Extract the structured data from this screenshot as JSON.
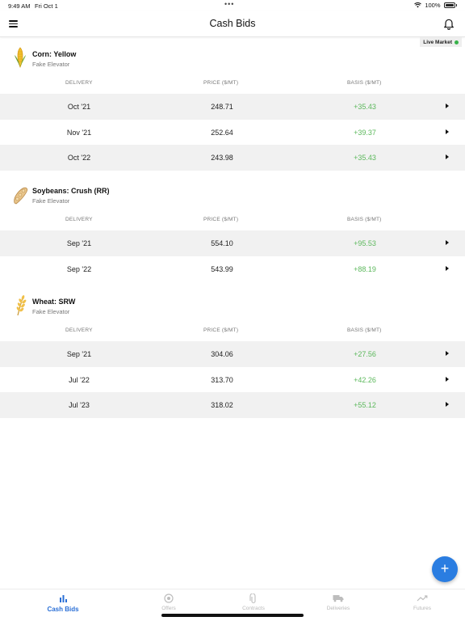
{
  "status_bar": {
    "time": "9:49 AM",
    "date": "Fri Oct 1",
    "battery": "100%"
  },
  "nav": {
    "title": "Cash Bids"
  },
  "live_market": {
    "label": "Live Market",
    "color": "#38b24a"
  },
  "columns": {
    "delivery": "DELIVERY",
    "price": "PRICE ($/MT)",
    "basis": "BASIS ($/MT)"
  },
  "sections": [
    {
      "name": "Corn: Yellow",
      "location": "Fake Elevator",
      "icon": "corn-icon",
      "rows": [
        {
          "delivery": "Oct '21",
          "price": "248.71",
          "basis": "+35.43"
        },
        {
          "delivery": "Nov '21",
          "price": "252.64",
          "basis": "+39.37"
        },
        {
          "delivery": "Oct '22",
          "price": "243.98",
          "basis": "+35.43"
        }
      ]
    },
    {
      "name": "Soybeans: Crush (RR)",
      "location": "Fake Elevator",
      "icon": "soybean-icon",
      "rows": [
        {
          "delivery": "Sep '21",
          "price": "554.10",
          "basis": "+95.53"
        },
        {
          "delivery": "Sep '22",
          "price": "543.99",
          "basis": "+88.19"
        }
      ]
    },
    {
      "name": "Wheat: SRW",
      "location": "Fake Elevator",
      "icon": "wheat-icon",
      "rows": [
        {
          "delivery": "Sep '21",
          "price": "304.06",
          "basis": "+27.56"
        },
        {
          "delivery": "Jul '22",
          "price": "313.70",
          "basis": "+42.26"
        },
        {
          "delivery": "Jul '23",
          "price": "318.02",
          "basis": "+55.12"
        }
      ]
    }
  ],
  "fab": {
    "label": "+",
    "color": "#2a7de1"
  },
  "tabs": [
    {
      "label": "Cash Bids",
      "icon": "bar-chart-icon",
      "active": true
    },
    {
      "label": "Offers",
      "icon": "target-icon",
      "active": false
    },
    {
      "label": "Contracts",
      "icon": "paperclip-icon",
      "active": false
    },
    {
      "label": "Deliveries",
      "icon": "truck-icon",
      "active": false
    },
    {
      "label": "Futures",
      "icon": "trending-up-icon",
      "active": false
    }
  ],
  "colors": {
    "accent": "#2a6fd6",
    "basis_positive": "#5cb85c",
    "row_shade": "#f1f1f1"
  }
}
